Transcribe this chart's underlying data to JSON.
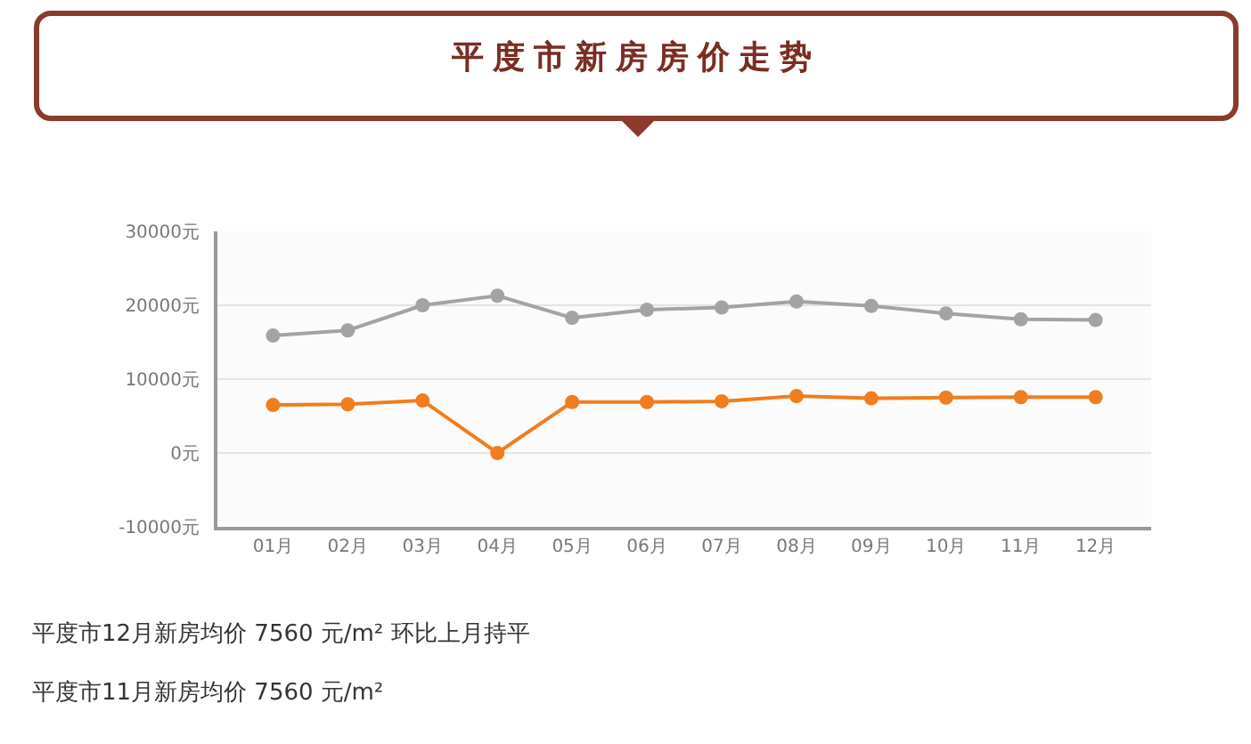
{
  "chart_data": {
    "type": "line",
    "title": "平度市新房房价走势",
    "categories": [
      "01月",
      "02月",
      "03月",
      "04月",
      "05月",
      "06月",
      "07月",
      "08月",
      "09月",
      "10月",
      "11月",
      "12月"
    ],
    "series": [
      {
        "color": "#a3a3a3",
        "values": [
          15900,
          16600,
          20000,
          21300,
          18300,
          19400,
          19700,
          20500,
          19900,
          18900,
          18100,
          18000
        ]
      },
      {
        "color": "#f07d1e",
        "values": [
          6500,
          6600,
          7100,
          0,
          6900,
          6900,
          7000,
          7700,
          7400,
          7500,
          7560,
          7560
        ]
      }
    ],
    "ylim": [
      -10000,
      30000
    ],
    "yticks": [
      {
        "value": -10000,
        "label": "-10000元"
      },
      {
        "value": 0,
        "label": "0元"
      },
      {
        "value": 10000,
        "label": "10000元"
      },
      {
        "value": 20000,
        "label": "20000元"
      },
      {
        "value": 30000,
        "label": "30000元"
      }
    ],
    "grid": "y",
    "marker": "circle",
    "line_style": "solid",
    "annotations": [
      "平度市12月新房均价 7560 元/m² 环比上月持平",
      "平度市11月新房均价 7560 元/m²"
    ]
  }
}
